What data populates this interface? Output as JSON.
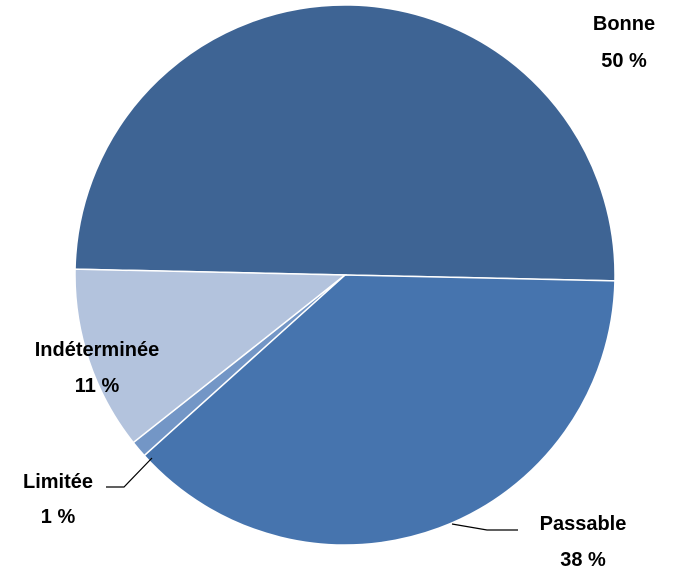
{
  "chart_data": {
    "type": "pie",
    "title": "",
    "slices": [
      {
        "label": "Bonne",
        "percent_label": "50 %",
        "value": 50,
        "color": "#3E6494"
      },
      {
        "label": "Passable",
        "percent_label": "38 %",
        "value": 38,
        "color": "#4674AE"
      },
      {
        "label": "Limitée",
        "percent_label": "1 %",
        "value": 1,
        "color": "#7396C6"
      },
      {
        "label": "Indéterminée",
        "percent_label": "11 %",
        "value": 11,
        "color": "#B3C3DD"
      }
    ],
    "legend": "none",
    "start_direction": "clockwise"
  }
}
